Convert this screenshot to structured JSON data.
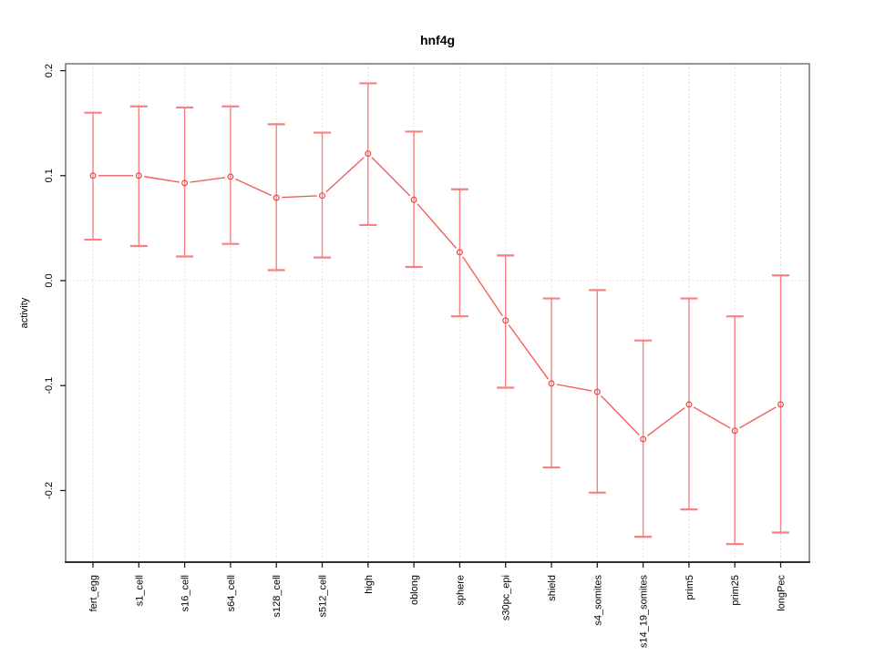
{
  "chart_data": {
    "type": "line",
    "title": "hnf4g",
    "xlabel": "",
    "ylabel": "activity",
    "categories": [
      "fert_egg",
      "s1_cell",
      "s16_cell",
      "s64_cell",
      "s128_cell",
      "s512_cell",
      "high",
      "oblong",
      "sphere",
      "s30pc_epi",
      "shield",
      "s4_somites",
      "s14_19_somites",
      "prim5",
      "prim25",
      "longPec"
    ],
    "series": [
      {
        "name": "activity",
        "values": [
          0.1,
          0.1,
          0.093,
          0.099,
          0.079,
          0.081,
          0.121,
          0.077,
          0.027,
          -0.038,
          -0.098,
          -0.106,
          -0.151,
          -0.118,
          -0.143,
          -0.118
        ],
        "upper": [
          0.16,
          0.166,
          0.165,
          0.166,
          0.149,
          0.141,
          0.188,
          0.142,
          0.087,
          0.024,
          -0.017,
          -0.009,
          -0.057,
          -0.017,
          -0.034,
          0.005
        ],
        "lower": [
          0.039,
          0.033,
          0.023,
          0.035,
          0.01,
          0.022,
          0.053,
          0.013,
          -0.034,
          -0.102,
          -0.178,
          -0.202,
          -0.244,
          -0.218,
          -0.251,
          -0.24
        ]
      }
    ],
    "ylim": [
      -0.268,
      0.207
    ],
    "yticks": [
      0.2,
      0.1,
      0.0,
      -0.1,
      -0.2
    ],
    "ytick_labels": [
      "0.2",
      "0.1",
      "0.0",
      "-0.1",
      "-0.2"
    ],
    "grid": "vertical dotted line at each category; horizontal dotted line at y=0",
    "legend": "none",
    "point_style": "open circle, line type b (gaps at points)",
    "colors": {
      "series_line": "#f15f5f",
      "point_stroke": "#ee4747",
      "error_bar": "#f58282",
      "grid_line": "#d9d9d9",
      "zero_line": "#dedede",
      "box_border": "#8a8a8a",
      "axis_line": "#1f1f1f",
      "tick_text": "#000000"
    }
  }
}
